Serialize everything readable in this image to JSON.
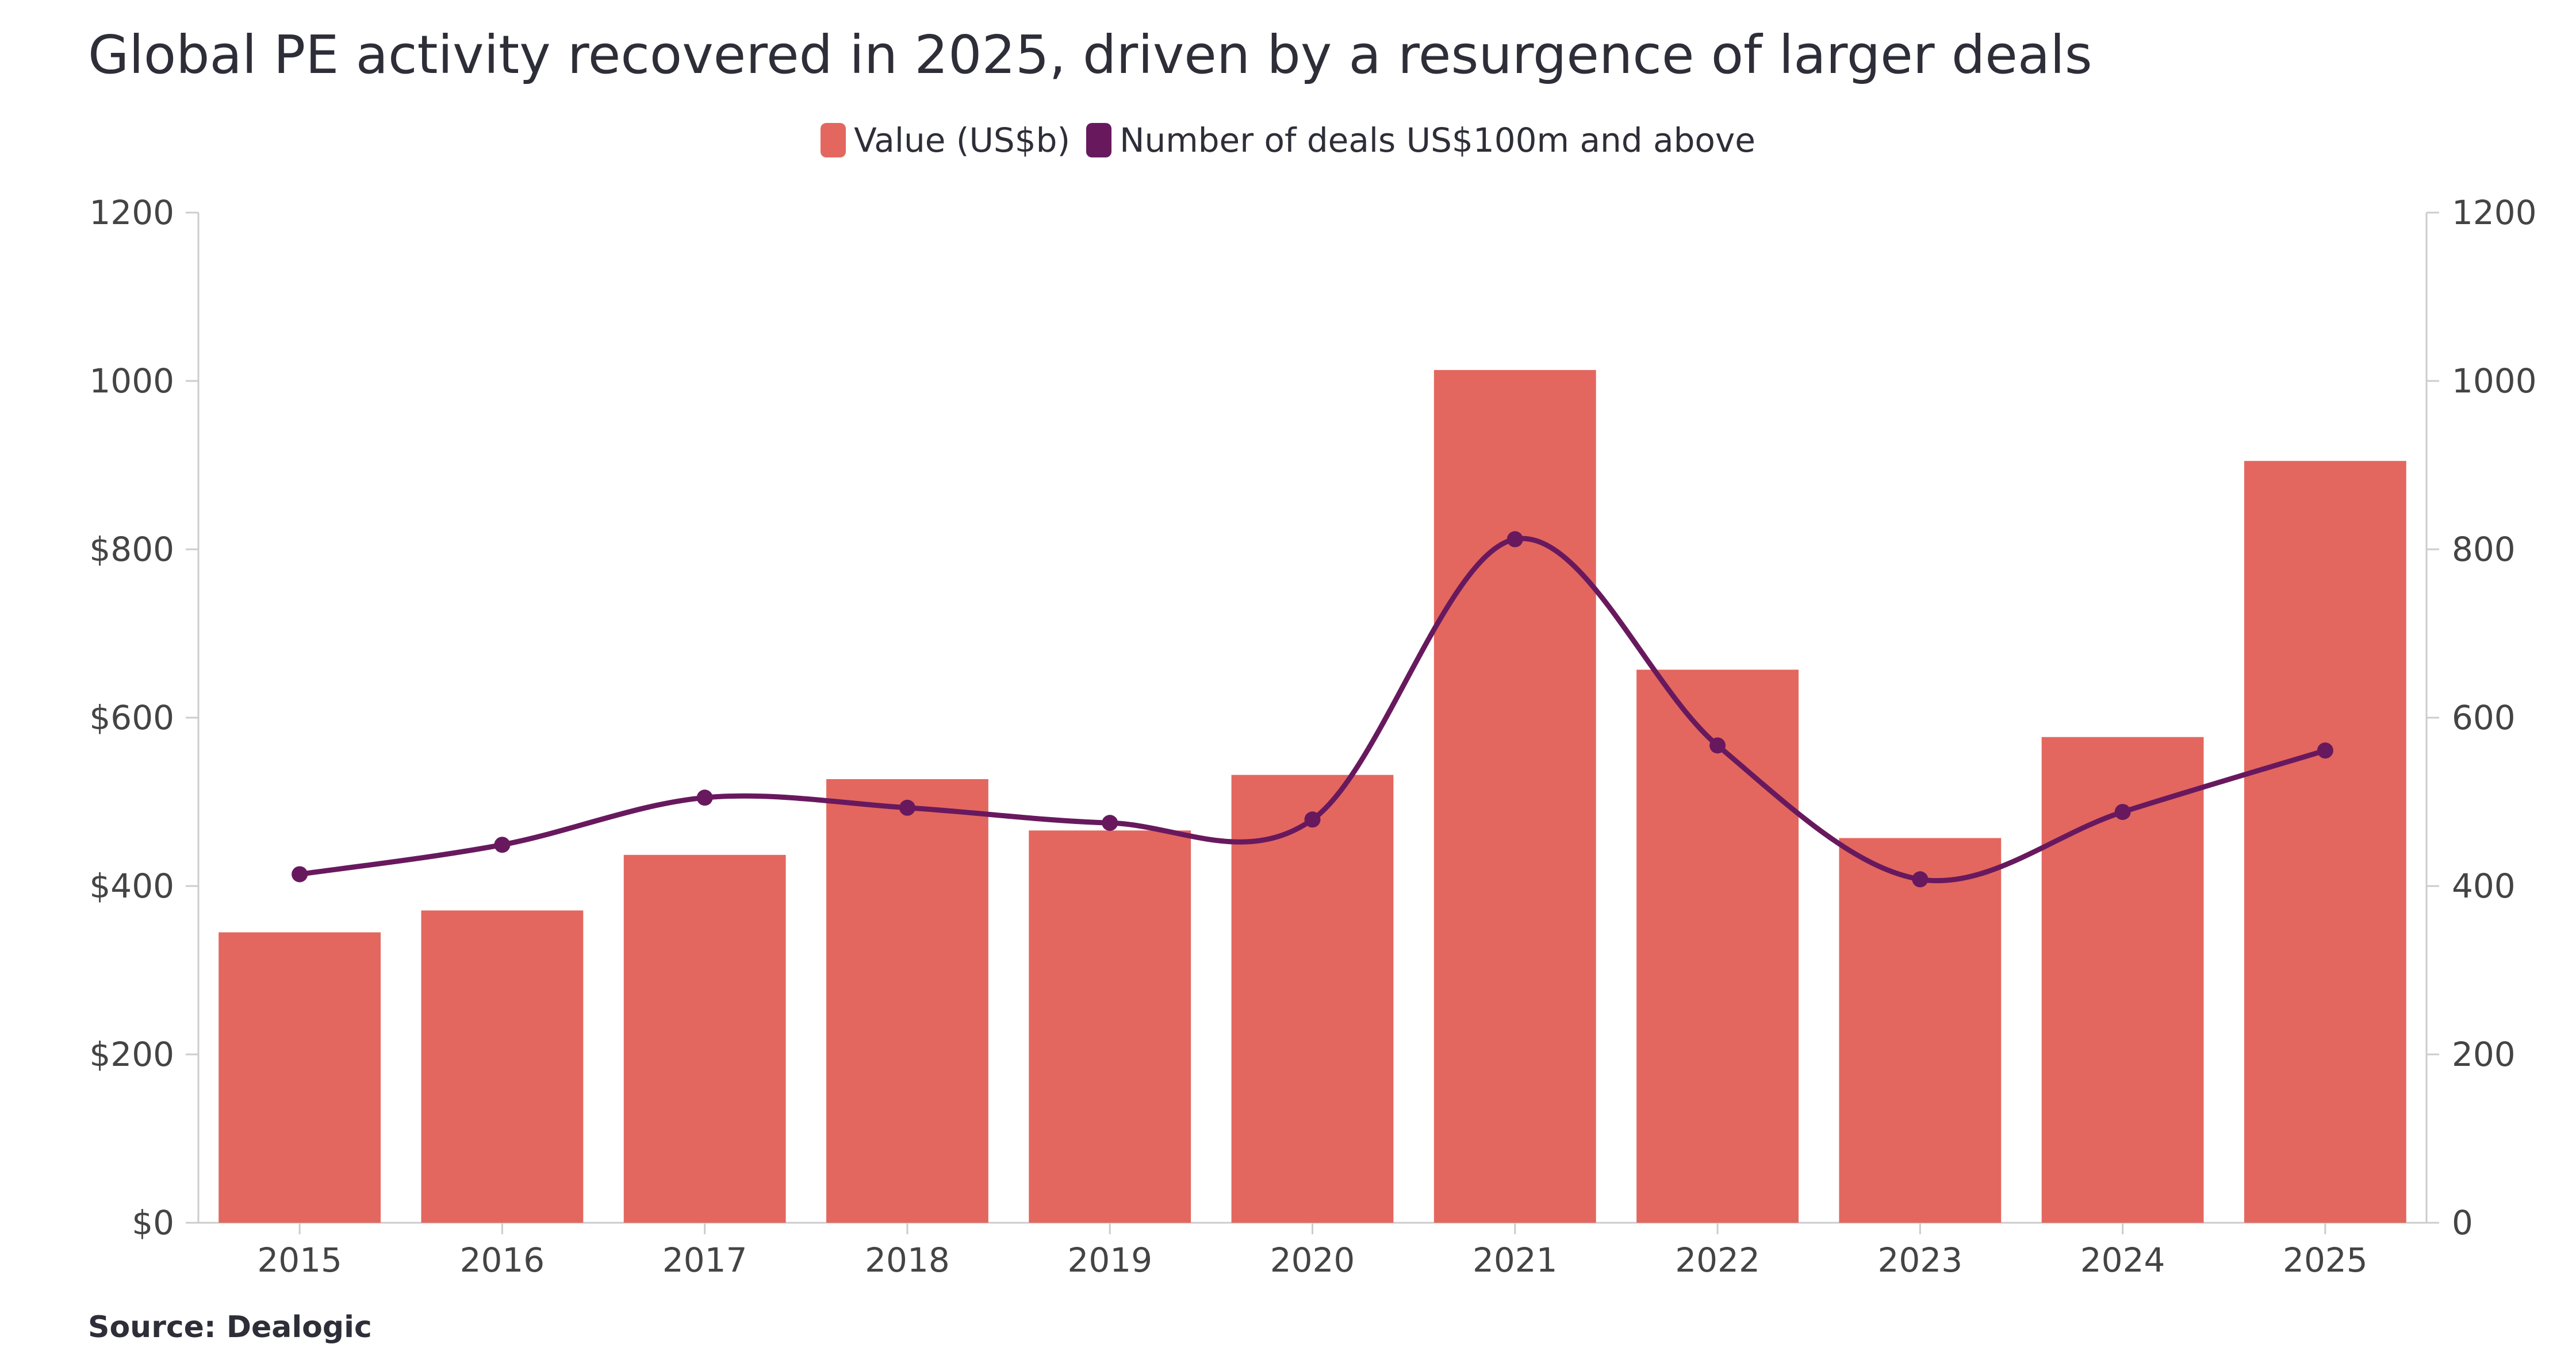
{
  "title": "Global PE activity recovered in 2025, driven by a resurgence of larger deals",
  "source": "Source: Dealogic",
  "colors": {
    "bar": "#e3675f",
    "line": "#68195e",
    "axis": "#cccccc"
  },
  "legend": [
    {
      "label": "Value (US$b)",
      "color": "#e3675f"
    },
    {
      "label": "Number of deals US$100m and above",
      "color": "#68195e"
    }
  ],
  "chart_data": {
    "type": "bar",
    "title": "Global PE activity recovered in 2025, driven by a resurgence of larger deals",
    "categories": [
      "2015",
      "2016",
      "2017",
      "2018",
      "2019",
      "2020",
      "2021",
      "2022",
      "2023",
      "2024",
      "2025"
    ],
    "series": [
      {
        "name": "Value (US$b)",
        "type": "bar",
        "axis": "left",
        "values": [
          345,
          371,
          437,
          527,
          466,
          532,
          1013,
          657,
          457,
          577,
          905
        ]
      },
      {
        "name": "Number of deals US$100m and above",
        "type": "line",
        "axis": "right",
        "values": [
          414,
          449,
          505,
          493,
          475,
          479,
          812,
          567,
          408,
          488,
          561
        ]
      }
    ],
    "y_left": {
      "min": 0,
      "max": 1200,
      "ticks": [
        "$0",
        "$200",
        "$400",
        "$600",
        "$800",
        "1000",
        "1200"
      ]
    },
    "y_right": {
      "min": 0,
      "max": 1200,
      "ticks": [
        "0",
        "200",
        "400",
        "600",
        "800",
        "1000",
        "1200"
      ]
    },
    "xlabel": "",
    "ylabel": "",
    "grid": false,
    "legend_position": "top-center"
  }
}
